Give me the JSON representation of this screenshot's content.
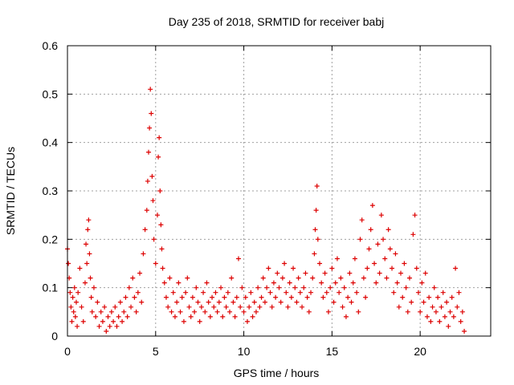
{
  "chart_data": {
    "type": "scatter",
    "title": "Day 235 of 2018, SRMTID for receiver babj",
    "xlabel": "GPS time / hours",
    "ylabel": "SRMTID / TECUs",
    "xlim": [
      0,
      24
    ],
    "ylim": [
      0,
      0.6
    ],
    "grid": true,
    "marker": "+",
    "marker_color": "#dd0000",
    "x_ticks": [
      0,
      5,
      10,
      15,
      20
    ],
    "x_tick_labels": [
      "0",
      "5",
      "10",
      "15",
      "20"
    ],
    "y_ticks": [
      0,
      0.1,
      0.2,
      0.3,
      0.4,
      0.5,
      0.6
    ],
    "y_tick_labels": [
      "0",
      "0.1",
      "0.2",
      "0.3",
      "0.4",
      "0.5",
      "0.6"
    ],
    "series": [
      {
        "name": "SRMTID",
        "points": [
          [
            0.0,
            0.18
          ],
          [
            0.05,
            0.15
          ],
          [
            0.1,
            0.12
          ],
          [
            0.15,
            0.09
          ],
          [
            0.2,
            0.06
          ],
          [
            0.25,
            0.03
          ],
          [
            0.3,
            0.08
          ],
          [
            0.35,
            0.05
          ],
          [
            0.4,
            0.1
          ],
          [
            0.45,
            0.04
          ],
          [
            0.5,
            0.07
          ],
          [
            0.55,
            0.02
          ],
          [
            0.6,
            0.09
          ],
          [
            0.7,
            0.14
          ],
          [
            0.8,
            0.06
          ],
          [
            0.9,
            0.03
          ],
          [
            1.0,
            0.11
          ],
          [
            1.05,
            0.19
          ],
          [
            1.1,
            0.15
          ],
          [
            1.15,
            0.22
          ],
          [
            1.2,
            0.24
          ],
          [
            1.25,
            0.17
          ],
          [
            1.3,
            0.12
          ],
          [
            1.35,
            0.08
          ],
          [
            1.4,
            0.05
          ],
          [
            1.5,
            0.1
          ],
          [
            1.6,
            0.04
          ],
          [
            1.7,
            0.07
          ],
          [
            1.8,
            0.02
          ],
          [
            1.9,
            0.05
          ],
          [
            2.0,
            0.03
          ],
          [
            2.1,
            0.06
          ],
          [
            2.2,
            0.01
          ],
          [
            2.3,
            0.04
          ],
          [
            2.4,
            0.02
          ],
          [
            2.5,
            0.05
          ],
          [
            2.6,
            0.03
          ],
          [
            2.7,
            0.06
          ],
          [
            2.8,
            0.02
          ],
          [
            2.9,
            0.04
          ],
          [
            3.0,
            0.07
          ],
          [
            3.1,
            0.03
          ],
          [
            3.2,
            0.05
          ],
          [
            3.3,
            0.08
          ],
          [
            3.4,
            0.04
          ],
          [
            3.5,
            0.1
          ],
          [
            3.6,
            0.06
          ],
          [
            3.7,
            0.12
          ],
          [
            3.8,
            0.08
          ],
          [
            3.9,
            0.05
          ],
          [
            4.0,
            0.09
          ],
          [
            4.1,
            0.13
          ],
          [
            4.2,
            0.07
          ],
          [
            4.3,
            0.17
          ],
          [
            4.4,
            0.22
          ],
          [
            4.5,
            0.26
          ],
          [
            4.55,
            0.32
          ],
          [
            4.6,
            0.38
          ],
          [
            4.65,
            0.43
          ],
          [
            4.7,
            0.51
          ],
          [
            4.75,
            0.46
          ],
          [
            4.8,
            0.33
          ],
          [
            4.85,
            0.28
          ],
          [
            4.9,
            0.2
          ],
          [
            5.0,
            0.15
          ],
          [
            5.1,
            0.25
          ],
          [
            5.15,
            0.37
          ],
          [
            5.2,
            0.41
          ],
          [
            5.25,
            0.3
          ],
          [
            5.3,
            0.23
          ],
          [
            5.35,
            0.18
          ],
          [
            5.4,
            0.14
          ],
          [
            5.5,
            0.11
          ],
          [
            5.6,
            0.08
          ],
          [
            5.7,
            0.06
          ],
          [
            5.8,
            0.12
          ],
          [
            5.9,
            0.05
          ],
          [
            6.0,
            0.09
          ],
          [
            6.1,
            0.04
          ],
          [
            6.2,
            0.07
          ],
          [
            6.3,
            0.11
          ],
          [
            6.4,
            0.05
          ],
          [
            6.5,
            0.08
          ],
          [
            6.6,
            0.03
          ],
          [
            6.7,
            0.09
          ],
          [
            6.8,
            0.12
          ],
          [
            6.9,
            0.06
          ],
          [
            7.0,
            0.04
          ],
          [
            7.1,
            0.08
          ],
          [
            7.2,
            0.05
          ],
          [
            7.3,
            0.1
          ],
          [
            7.4,
            0.07
          ],
          [
            7.5,
            0.03
          ],
          [
            7.6,
            0.06
          ],
          [
            7.7,
            0.09
          ],
          [
            7.8,
            0.05
          ],
          [
            7.9,
            0.11
          ],
          [
            8.0,
            0.07
          ],
          [
            8.1,
            0.04
          ],
          [
            8.2,
            0.08
          ],
          [
            8.3,
            0.06
          ],
          [
            8.4,
            0.09
          ],
          [
            8.5,
            0.05
          ],
          [
            8.6,
            0.07
          ],
          [
            8.7,
            0.1
          ],
          [
            8.8,
            0.04
          ],
          [
            8.9,
            0.08
          ],
          [
            9.0,
            0.06
          ],
          [
            9.1,
            0.09
          ],
          [
            9.2,
            0.05
          ],
          [
            9.3,
            0.12
          ],
          [
            9.4,
            0.07
          ],
          [
            9.5,
            0.04
          ],
          [
            9.6,
            0.08
          ],
          [
            9.7,
            0.16
          ],
          [
            9.8,
            0.06
          ],
          [
            9.9,
            0.1
          ],
          [
            10.0,
            0.05
          ],
          [
            10.1,
            0.08
          ],
          [
            10.2,
            0.03
          ],
          [
            10.3,
            0.06
          ],
          [
            10.4,
            0.09
          ],
          [
            10.5,
            0.04
          ],
          [
            10.6,
            0.07
          ],
          [
            10.7,
            0.05
          ],
          [
            10.8,
            0.1
          ],
          [
            10.9,
            0.06
          ],
          [
            11.0,
            0.08
          ],
          [
            11.1,
            0.12
          ],
          [
            11.2,
            0.07
          ],
          [
            11.3,
            0.1
          ],
          [
            11.4,
            0.14
          ],
          [
            11.5,
            0.09
          ],
          [
            11.6,
            0.06
          ],
          [
            11.7,
            0.11
          ],
          [
            11.8,
            0.08
          ],
          [
            11.9,
            0.13
          ],
          [
            12.0,
            0.1
          ],
          [
            12.1,
            0.07
          ],
          [
            12.2,
            0.12
          ],
          [
            12.3,
            0.15
          ],
          [
            12.4,
            0.09
          ],
          [
            12.5,
            0.06
          ],
          [
            12.6,
            0.11
          ],
          [
            12.7,
            0.08
          ],
          [
            12.8,
            0.14
          ],
          [
            12.9,
            0.1
          ],
          [
            13.0,
            0.07
          ],
          [
            13.1,
            0.12
          ],
          [
            13.2,
            0.09
          ],
          [
            13.3,
            0.06
          ],
          [
            13.4,
            0.1
          ],
          [
            13.5,
            0.13
          ],
          [
            13.6,
            0.08
          ],
          [
            13.7,
            0.05
          ],
          [
            13.8,
            0.09
          ],
          [
            13.9,
            0.12
          ],
          [
            14.0,
            0.17
          ],
          [
            14.05,
            0.22
          ],
          [
            14.1,
            0.26
          ],
          [
            14.15,
            0.31
          ],
          [
            14.2,
            0.2
          ],
          [
            14.3,
            0.15
          ],
          [
            14.4,
            0.11
          ],
          [
            14.5,
            0.08
          ],
          [
            14.6,
            0.13
          ],
          [
            14.7,
            0.09
          ],
          [
            14.8,
            0.05
          ],
          [
            14.9,
            0.1
          ],
          [
            15.0,
            0.14
          ],
          [
            15.1,
            0.07
          ],
          [
            15.2,
            0.11
          ],
          [
            15.3,
            0.16
          ],
          [
            15.4,
            0.09
          ],
          [
            15.5,
            0.12
          ],
          [
            15.6,
            0.06
          ],
          [
            15.7,
            0.1
          ],
          [
            15.8,
            0.04
          ],
          [
            15.9,
            0.08
          ],
          [
            16.0,
            0.13
          ],
          [
            16.1,
            0.07
          ],
          [
            16.2,
            0.11
          ],
          [
            16.3,
            0.16
          ],
          [
            16.4,
            0.09
          ],
          [
            16.5,
            0.05
          ],
          [
            16.6,
            0.2
          ],
          [
            16.7,
            0.24
          ],
          [
            16.8,
            0.12
          ],
          [
            16.9,
            0.08
          ],
          [
            17.0,
            0.14
          ],
          [
            17.1,
            0.18
          ],
          [
            17.2,
            0.22
          ],
          [
            17.3,
            0.27
          ],
          [
            17.4,
            0.15
          ],
          [
            17.5,
            0.11
          ],
          [
            17.6,
            0.19
          ],
          [
            17.7,
            0.13
          ],
          [
            17.8,
            0.25
          ],
          [
            17.9,
            0.2
          ],
          [
            18.0,
            0.16
          ],
          [
            18.1,
            0.12
          ],
          [
            18.2,
            0.22
          ],
          [
            18.3,
            0.18
          ],
          [
            18.4,
            0.14
          ],
          [
            18.5,
            0.09
          ],
          [
            18.6,
            0.17
          ],
          [
            18.7,
            0.11
          ],
          [
            18.8,
            0.06
          ],
          [
            18.9,
            0.13
          ],
          [
            19.0,
            0.08
          ],
          [
            19.1,
            0.15
          ],
          [
            19.2,
            0.1
          ],
          [
            19.3,
            0.05
          ],
          [
            19.4,
            0.12
          ],
          [
            19.5,
            0.07
          ],
          [
            19.6,
            0.21
          ],
          [
            19.7,
            0.25
          ],
          [
            19.8,
            0.14
          ],
          [
            19.9,
            0.09
          ],
          [
            20.0,
            0.05
          ],
          [
            20.1,
            0.11
          ],
          [
            20.2,
            0.07
          ],
          [
            20.3,
            0.13
          ],
          [
            20.4,
            0.04
          ],
          [
            20.5,
            0.08
          ],
          [
            20.6,
            0.03
          ],
          [
            20.7,
            0.06
          ],
          [
            20.8,
            0.1
          ],
          [
            20.9,
            0.05
          ],
          [
            21.0,
            0.08
          ],
          [
            21.1,
            0.03
          ],
          [
            21.2,
            0.06
          ],
          [
            21.3,
            0.09
          ],
          [
            21.4,
            0.04
          ],
          [
            21.5,
            0.07
          ],
          [
            21.6,
            0.02
          ],
          [
            21.7,
            0.05
          ],
          [
            21.8,
            0.08
          ],
          [
            21.9,
            0.04
          ],
          [
            22.0,
            0.14
          ],
          [
            22.1,
            0.06
          ],
          [
            22.2,
            0.09
          ],
          [
            22.3,
            0.03
          ],
          [
            22.4,
            0.05
          ],
          [
            22.5,
            0.01
          ]
        ]
      }
    ]
  }
}
